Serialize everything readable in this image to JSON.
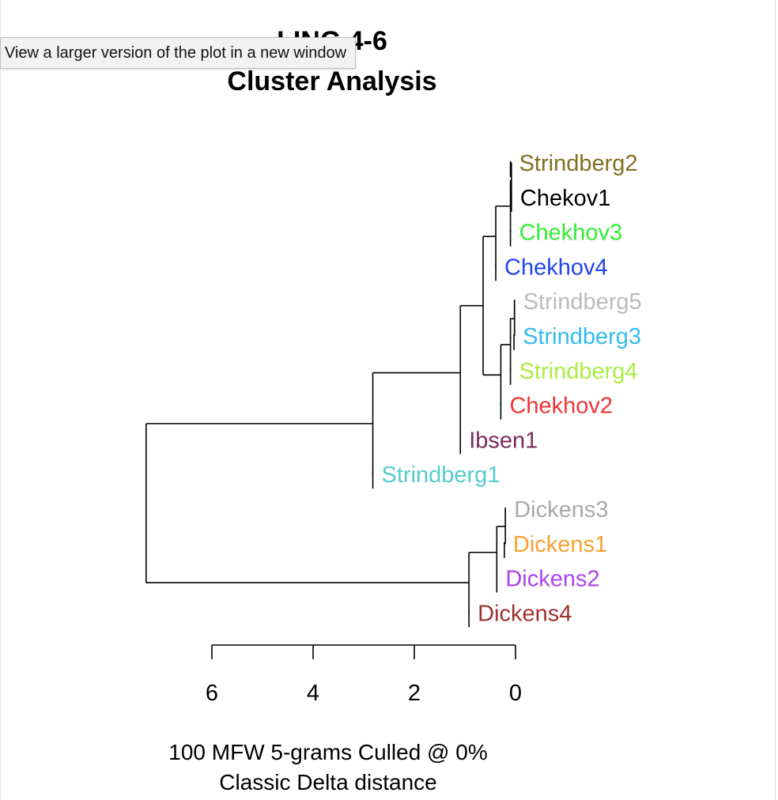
{
  "tooltip": {
    "text": "View a larger version of the plot in a new window"
  },
  "title": {
    "line1": "LING 4-6",
    "line2": "Cluster Analysis"
  },
  "footer": {
    "line1": "100 MFW 5-grams Culled @ 0%",
    "line2": "Classic Delta distance"
  },
  "chart_data": {
    "type": "dendrogram",
    "orientation": "horizontal",
    "xlim": [
      6,
      0
    ],
    "x_ticks": [
      6,
      4,
      2,
      0
    ],
    "leaves": [
      {
        "label": "Strindberg2",
        "color": "#807020"
      },
      {
        "label": "Chekov1",
        "color": "#000000"
      },
      {
        "label": "Chekhov3",
        "color": "#33ee33"
      },
      {
        "label": "Chekhov4",
        "color": "#2244ee"
      },
      {
        "label": "Strindberg5",
        "color": "#bbbbbb"
      },
      {
        "label": "Strindberg3",
        "color": "#33bbee"
      },
      {
        "label": "Strindberg4",
        "color": "#aaee44"
      },
      {
        "label": "Chekhov2",
        "color": "#ee3333"
      },
      {
        "label": "Ibsen1",
        "color": "#7a2a5a"
      },
      {
        "label": "Strindberg1",
        "color": "#55cccc"
      },
      {
        "label": "Dickens3",
        "color": "#aaaaaa"
      },
      {
        "label": "Dickens1",
        "color": "#f5a030"
      },
      {
        "label": "Dickens2",
        "color": "#aa44ee"
      },
      {
        "label": "Dickens4",
        "color": "#a03030"
      }
    ],
    "leaf_heights": [
      0.1,
      0.08,
      0.1,
      0.39,
      0.02,
      0.03,
      0.1,
      0.29,
      1.09,
      2.82,
      0.2,
      0.22,
      0.37,
      0.92
    ],
    "merges": [
      {
        "id": "A",
        "a": 0,
        "b": 1,
        "height": 0.08
      },
      {
        "id": "B",
        "a": "A",
        "b": 2,
        "height": 0.1
      },
      {
        "id": "C",
        "a": "B",
        "b": 3,
        "height": 0.39
      },
      {
        "id": "D",
        "a": 4,
        "b": 5,
        "height": 0.02
      },
      {
        "id": "E",
        "a": "D",
        "b": 6,
        "height": 0.1
      },
      {
        "id": "F",
        "a": "E",
        "b": 7,
        "height": 0.29
      },
      {
        "id": "G",
        "a": "C",
        "b": "F",
        "height": 0.64
      },
      {
        "id": "H",
        "a": "G",
        "b": 8,
        "height": 1.09
      },
      {
        "id": "I",
        "a": "H",
        "b": 9,
        "height": 2.82
      },
      {
        "id": "J",
        "a": 10,
        "b": 11,
        "height": 0.2
      },
      {
        "id": "K",
        "a": "J",
        "b": 12,
        "height": 0.37
      },
      {
        "id": "L",
        "a": "K",
        "b": 13,
        "height": 0.92
      },
      {
        "id": "M",
        "a": "I",
        "b": "L",
        "height": 7.3
      }
    ]
  }
}
